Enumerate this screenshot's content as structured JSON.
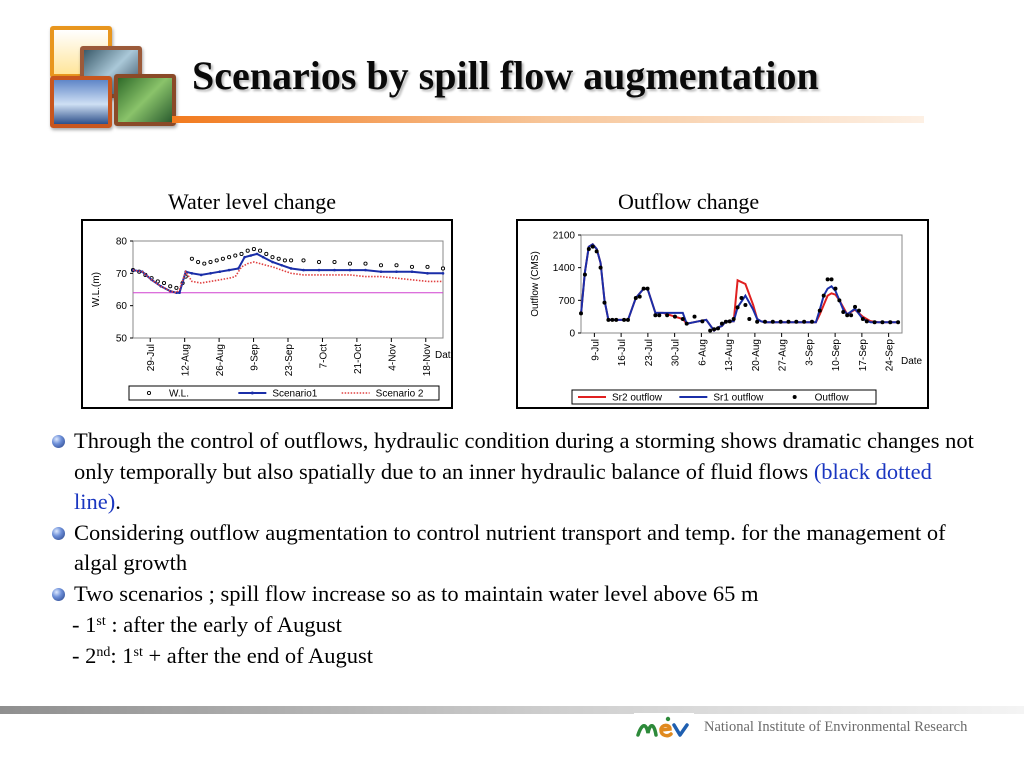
{
  "slide": {
    "title": "Scenarios by spill flow augmentation",
    "captions": {
      "left": "Water level change",
      "right": "Outflow change"
    },
    "bullets": [
      {
        "text": "Through the control of outflows, hydraulic condition during a storming shows dramatic changes not only temporally but also spatially due to an inner hydraulic balance of fluid flows ",
        "highlight": "(black dotted line)",
        "tail": "."
      },
      {
        "text": "Considering outflow augmentation to control nutrient transport and temp. for the management of algal growth"
      },
      {
        "text": "Two scenarios ;  spill flow increase so as to maintain water level above 65 m"
      }
    ],
    "sub_items": [
      {
        "prefix": "- 1",
        "sup": "st",
        "text": " : after the early of August"
      },
      {
        "prefix": "- 2",
        "sup": "nd",
        "mid": ":  1",
        "sup2": "st",
        "text": " + after the end of August"
      }
    ],
    "footer": {
      "org": "National Institute of Environmental Research",
      "logo_text": "mev"
    }
  },
  "chart_data": [
    {
      "type": "line",
      "title": "Water level change",
      "xlabel": "Date",
      "ylabel": "W.L.(m)",
      "ylim": [
        50,
        80
      ],
      "yticks": [
        50,
        60,
        70,
        80
      ],
      "xlim": [
        0,
        100
      ],
      "xticks": [
        "29-Jul",
        "12-Aug",
        "26-Aug",
        "9-Sep",
        "23-Sep",
        "7-Oct",
        "21-Oct",
        "4-Nov",
        "18-Nov"
      ],
      "reference_line": {
        "y": 64,
        "color": "#d040d0"
      },
      "legend_position": "bottom",
      "series": [
        {
          "name": "W.L.",
          "style": "dots",
          "color": "#000000",
          "x": [
            0,
            2,
            4,
            6,
            8,
            10,
            12,
            14,
            16,
            17,
            19,
            21,
            23,
            25,
            27,
            29,
            31,
            33,
            35,
            37,
            39,
            41,
            43,
            45,
            47,
            49,
            51,
            55,
            60,
            65,
            70,
            75,
            80,
            85,
            90,
            95,
            100
          ],
          "values": [
            71,
            70.5,
            69.5,
            68.5,
            67.5,
            67,
            66,
            65.5,
            67,
            69,
            74.5,
            73.5,
            73,
            73.5,
            74,
            74.5,
            75,
            75.5,
            76,
            77,
            77.5,
            77,
            76,
            75,
            74.5,
            74,
            74,
            74,
            73.5,
            73.5,
            73,
            73,
            72.5,
            72.5,
            72,
            72,
            71.5
          ]
        },
        {
          "name": "Scenario1",
          "style": "line-markers",
          "color": "#1a2ea8",
          "x": [
            0,
            3,
            6,
            9,
            12,
            14,
            15,
            17,
            19,
            22,
            25,
            28,
            31,
            34,
            36,
            38,
            40,
            42,
            45,
            48,
            51,
            55,
            60,
            65,
            70,
            75,
            80,
            85,
            90,
            95,
            100
          ],
          "values": [
            71,
            70.5,
            68,
            66,
            64.5,
            64,
            64,
            70.5,
            70,
            69.5,
            70,
            70.5,
            71,
            71.5,
            75,
            75.5,
            76,
            75,
            73.5,
            72.5,
            71.5,
            71,
            71,
            71,
            71,
            71,
            70.5,
            70.5,
            70.5,
            70,
            70
          ]
        },
        {
          "name": "Scenario 2",
          "style": "dotted",
          "color": "#e04040",
          "x": [
            0,
            3,
            6,
            9,
            12,
            14,
            15,
            17,
            19,
            22,
            25,
            28,
            31,
            33,
            35,
            37,
            39,
            41,
            43,
            45,
            48,
            51,
            55,
            60,
            65,
            70,
            75,
            80,
            85,
            90,
            95,
            100
          ],
          "values": [
            71,
            70.5,
            68,
            66,
            64.5,
            64,
            65,
            70.5,
            67.5,
            67,
            67.5,
            68,
            68.5,
            69,
            72,
            73,
            73.5,
            73,
            72.5,
            72,
            71,
            70,
            69.5,
            69.5,
            69.5,
            69.5,
            69,
            69,
            68.5,
            68,
            67.5,
            67.5
          ]
        }
      ]
    },
    {
      "type": "line",
      "title": "Outflow change",
      "xlabel": "Date",
      "ylabel": "Outflow (CMS)",
      "ylim": [
        0,
        2100
      ],
      "yticks": [
        0,
        700,
        1400,
        2100
      ],
      "xlim": [
        0,
        82
      ],
      "xticks": [
        "9-Jul",
        "16-Jul",
        "23-Jul",
        "30-Jul",
        "6-Aug",
        "13-Aug",
        "20-Aug",
        "27-Aug",
        "3-Sep",
        "10-Sep",
        "17-Sep",
        "24-Sep"
      ],
      "legend_position": "bottom",
      "series": [
        {
          "name": "Sr2 outflow",
          "style": "line",
          "color": "#e02020",
          "x": [
            0,
            1,
            2,
            3,
            4,
            5,
            6,
            7,
            8,
            9,
            12,
            14,
            16,
            17,
            19,
            20,
            21,
            24,
            26,
            27,
            30,
            32,
            34,
            35,
            36,
            37,
            39,
            40,
            42,
            44,
            45,
            46,
            47,
            48,
            50,
            55,
            60,
            61,
            62,
            63,
            64,
            65,
            66,
            67,
            68,
            70,
            72,
            74,
            76,
            78,
            81
          ],
          "values": [
            400,
            1300,
            1850,
            1900,
            1800,
            1500,
            700,
            280,
            280,
            280,
            280,
            750,
            950,
            950,
            430,
            430,
            430,
            350,
            300,
            200,
            250,
            280,
            50,
            120,
            150,
            250,
            250,
            1130,
            1050,
            600,
            300,
            250,
            230,
            230,
            230,
            230,
            230,
            400,
            600,
            800,
            850,
            820,
            700,
            550,
            400,
            500,
            350,
            250,
            230,
            230,
            230
          ]
        },
        {
          "name": "Sr1 outflow",
          "style": "line",
          "color": "#1a2ea8",
          "x": [
            0,
            1,
            2,
            3,
            4,
            5,
            6,
            7,
            8,
            9,
            12,
            14,
            16,
            17,
            19,
            20,
            21,
            24,
            26,
            27,
            30,
            32,
            34,
            35,
            36,
            37,
            39,
            40,
            42,
            44,
            45,
            46,
            47,
            48,
            50,
            55,
            60,
            61,
            62,
            63,
            64,
            65,
            66,
            67,
            68,
            70,
            72,
            74,
            76,
            78,
            81
          ],
          "values": [
            400,
            1300,
            1850,
            1900,
            1800,
            1500,
            700,
            280,
            280,
            280,
            280,
            750,
            950,
            950,
            430,
            430,
            430,
            430,
            430,
            200,
            250,
            280,
            50,
            120,
            150,
            250,
            250,
            550,
            800,
            500,
            300,
            250,
            230,
            230,
            230,
            230,
            230,
            500,
            800,
            950,
            1000,
            900,
            700,
            500,
            400,
            520,
            300,
            230,
            230,
            230,
            230
          ]
        },
        {
          "name": "Outflow",
          "style": "dots",
          "color": "#000000",
          "x": [
            0,
            1,
            2,
            3,
            4,
            5,
            6,
            7,
            8,
            9,
            11,
            12,
            14,
            15,
            16,
            17,
            19,
            20,
            22,
            24,
            26,
            27,
            29,
            31,
            33,
            34,
            35,
            36,
            37,
            38,
            39,
            40,
            41,
            42,
            43,
            45,
            47,
            49,
            51,
            53,
            55,
            57,
            59,
            61,
            62,
            63,
            64,
            65,
            66,
            67,
            68,
            69,
            70,
            71,
            72,
            73,
            75,
            77,
            79,
            81
          ],
          "values": [
            420,
            1250,
            1800,
            1850,
            1750,
            1400,
            650,
            280,
            280,
            280,
            280,
            280,
            750,
            780,
            950,
            950,
            380,
            380,
            380,
            350,
            300,
            200,
            350,
            250,
            50,
            80,
            100,
            200,
            240,
            250,
            300,
            550,
            750,
            600,
            300,
            240,
            240,
            240,
            240,
            240,
            240,
            240,
            240,
            480,
            800,
            1150,
            1150,
            950,
            700,
            450,
            380,
            380,
            560,
            480,
            300,
            250,
            230,
            230,
            230,
            230
          ]
        }
      ]
    }
  ]
}
